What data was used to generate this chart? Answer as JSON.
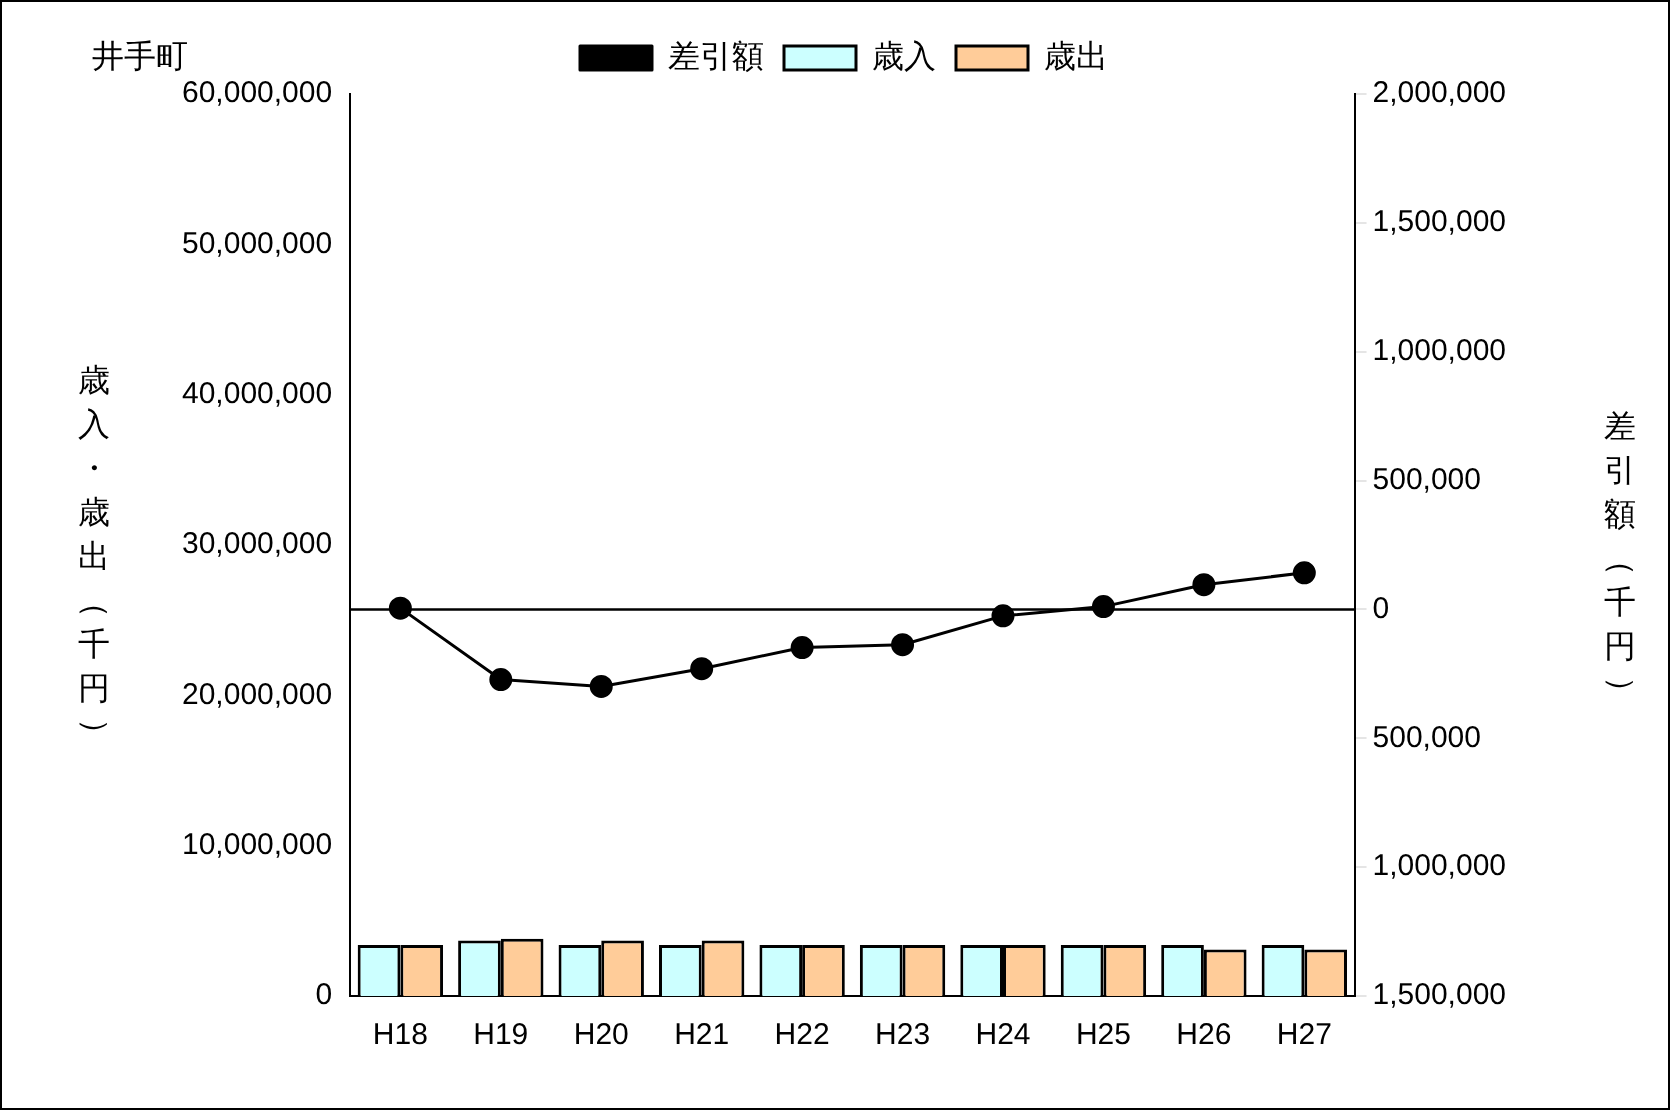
{
  "chart_data": {
    "type": "bar",
    "title": "井手町",
    "ylabel": "歳入・歳出（千円）",
    "y2label": "差引額（千円）",
    "categories": [
      "H18",
      "H19",
      "H20",
      "H21",
      "H22",
      "H23",
      "H24",
      "H25",
      "H26",
      "H27"
    ],
    "series": [
      {
        "name": "歳入",
        "color": "#ccffff",
        "values": [
          3400000,
          3700000,
          3400000,
          3400000,
          3400000,
          3400000,
          3400000,
          3400000,
          3400000,
          3400000
        ]
      },
      {
        "name": "歳出",
        "color": "#ffcc99",
        "values": [
          3400000,
          3800000,
          3700000,
          3700000,
          3400000,
          3400000,
          3400000,
          3400000,
          3100000,
          3100000
        ]
      },
      {
        "name": "差引額",
        "type": "line",
        "axis": "y2",
        "color": "#000000",
        "marker": "circle",
        "values": [
          5000,
          -272000,
          -299000,
          -230000,
          -148000,
          -137000,
          -25000,
          11000,
          96000,
          142000
        ]
      }
    ],
    "ylim": [
      0,
      60000000
    ],
    "yticks": [
      0,
      {
        "value": 10000000,
        "label": "10,000,000"
      },
      {
        "value": 20000000,
        "label": "20,000,000"
      },
      {
        "value": 30000000,
        "label": "30,000,000"
      },
      {
        "value": 40000000,
        "label": "40,000,000"
      },
      {
        "value": 50000000,
        "label": "50,000,000"
      },
      {
        "value": 60000000,
        "label": "60,000,000"
      }
    ],
    "y2lim": [
      -1500000,
      2000000
    ],
    "y2ticks": [
      {
        "value": -1500000,
        "label": "1,500,000"
      },
      {
        "value": -1000000,
        "label": "1,000,000"
      },
      {
        "value": -500000,
        "label": "500,000"
      },
      0,
      {
        "value": 500000,
        "label": "500,000"
      },
      {
        "value": 1000000,
        "label": "1,000,000"
      },
      {
        "value": 1500000,
        "label": "1,500,000"
      },
      {
        "value": 2000000,
        "label": "2,000,000"
      }
    ],
    "ref_lines": [
      {
        "axis": "y2",
        "value": 0,
        "color": "#000000"
      }
    ],
    "grid": false,
    "legend": "top"
  }
}
